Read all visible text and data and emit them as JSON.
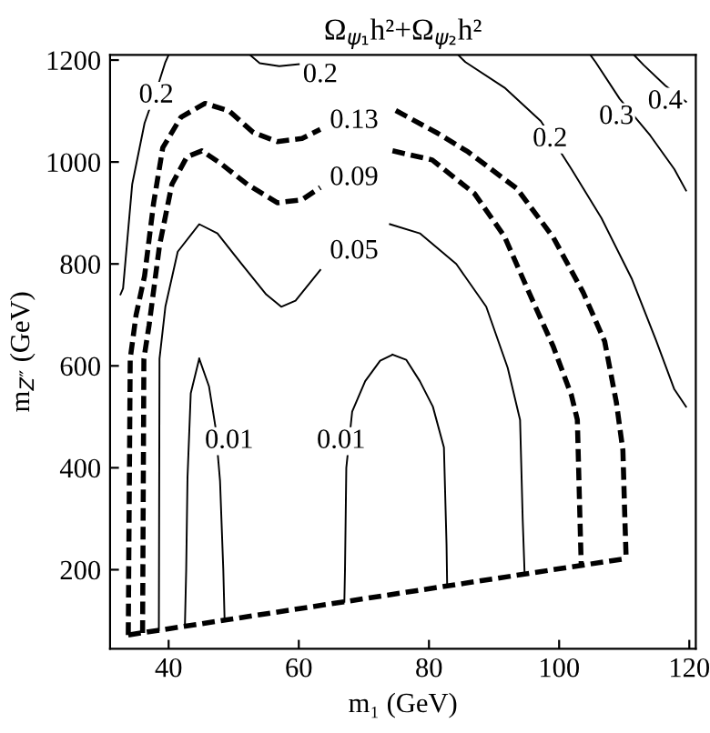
{
  "chart_data": {
    "type": "line",
    "title": "Ω$_{ψ₁}$h²+Ω$_{ψ₂}$h²",
    "xlabel": "m₁ (GeV)",
    "ylabel": "m$_{Z″}$ (GeV)",
    "xlim": [
      31,
      121
    ],
    "ylim": [
      45,
      1210
    ],
    "xticks": [
      40,
      60,
      80,
      100,
      120
    ],
    "yticks": [
      200,
      400,
      600,
      800,
      1000,
      1200
    ],
    "grid": false,
    "legend": false,
    "series": [
      {
        "color": "#000000",
        "line_style": "dashed",
        "x": [
          33.8,
          34.1,
          35.0,
          36.3,
          37.7,
          39.1,
          41.9,
          45.6,
          49.3,
          53.0,
          56.7,
          60.5,
          63.3
        ],
        "values": [
          72,
          614,
          700,
          776,
          920,
          1028,
          1088,
          1115,
          1100,
          1058,
          1040,
          1046,
          1064
        ]
      },
      {
        "color": "#000000",
        "line_style": "dashed",
        "x": [
          74.9,
          81.4,
          86.0,
          93.5,
          99.1,
          103.7,
          107.0,
          108.8,
          109.8,
          110.1,
          110.3
        ],
        "values": [
          1101,
          1056,
          1020,
          948,
          852,
          744,
          648,
          528,
          434,
          300,
          222
        ]
      },
      {
        "color": "#000000",
        "line_style": "dashed",
        "x": [
          36.0,
          36.2,
          37.0,
          38.6,
          40.5,
          42.8,
          45.1,
          47.9,
          52.1,
          56.7,
          60.5,
          63.3
        ],
        "values": [
          76,
          614,
          680,
          836,
          956,
          1010,
          1022,
          998,
          956,
          920,
          926,
          950
        ]
      },
      {
        "color": "#000000",
        "line_style": "dashed",
        "x": [
          74.4,
          80.5,
          87.0,
          91.6,
          95.3,
          99.1,
          101.9,
          102.8,
          103.2,
          103.4
        ],
        "values": [
          1022,
          1004,
          938,
          854,
          746,
          638,
          542,
          494,
          300,
          208
        ]
      },
      {
        "color": "#000000",
        "line_style": "dashed",
        "x": [
          33.8,
          110.3
        ],
        "values": [
          72,
          222
        ]
      },
      {
        "color": "#000000",
        "line_style": "solid",
        "x": [
          38.5,
          38.6,
          39.5,
          41.4,
          44.7,
          47.5,
          51.2,
          55.0,
          57.3,
          59.5,
          63.3
        ],
        "values": [
          81,
          614,
          716,
          824,
          878,
          860,
          800,
          740,
          716,
          728,
          788
        ]
      },
      {
        "color": "#000000",
        "line_style": "solid",
        "x": [
          74.0,
          78.6,
          84.2,
          88.8,
          92.1,
          94.0,
          94.4,
          94.7
        ],
        "values": [
          878,
          860,
          800,
          716,
          596,
          494,
          300,
          191
        ]
      },
      {
        "color": "#000000",
        "line_style": "solid",
        "x": [
          42.5,
          42.7,
          42.9,
          43.4,
          44.7
        ],
        "values": [
          89,
          200,
          380,
          546,
          614
        ]
      },
      {
        "color": "#000000",
        "line_style": "solid",
        "x": [
          44.7,
          46.2,
          47.2,
          47.9,
          48.4,
          48.6
        ],
        "values": [
          614,
          560,
          480,
          374,
          200,
          101
        ]
      },
      {
        "color": "#000000",
        "line_style": "solid",
        "x": [
          67.0,
          67.1,
          67.3,
          68.2,
          70.2,
          72.5,
          74.4
        ],
        "values": [
          137,
          200,
          400,
          510,
          570,
          610,
          622
        ]
      },
      {
        "color": "#000000",
        "line_style": "solid",
        "x": [
          74.4,
          76.5,
          78.6,
          80.6,
          82.3,
          82.7,
          82.8
        ],
        "values": [
          622,
          612,
          570,
          520,
          440,
          250,
          167
        ]
      },
      {
        "color": "#000000",
        "line_style": "solid",
        "x": [
          32.6,
          33.0,
          34.4,
          36.3,
          38.6,
          39.5,
          40.0
        ],
        "values": [
          740,
          752,
          956,
          1076,
          1160,
          1196,
          1210
        ]
      },
      {
        "color": "#000000",
        "line_style": "solid",
        "x": [
          52.5,
          54.0,
          57.0,
          60.0
        ],
        "values": [
          1210,
          1194,
          1188,
          1192
        ]
      },
      {
        "color": "#000000",
        "line_style": "solid",
        "x": [
          84.5,
          85.6,
          91.6,
          97.2,
          101.9,
          106.5,
          111.2,
          114.9,
          117.7,
          119.5
        ],
        "values": [
          1210,
          1196,
          1146,
          1080,
          986,
          890,
          770,
          650,
          554,
          520
        ]
      },
      {
        "color": "#000000",
        "line_style": "solid",
        "x": [
          104.8,
          105.6,
          109.3,
          114.0,
          117.7,
          119.5
        ],
        "values": [
          1210,
          1196,
          1124,
          1052,
          986,
          944
        ]
      },
      {
        "color": "#000000",
        "line_style": "solid",
        "x": [
          111.5,
          113.0,
          116.3,
          119.5
        ],
        "values": [
          1210,
          1190,
          1150,
          1118
        ]
      }
    ],
    "annotations": [
      {
        "text": "0.2",
        "x": 38.1,
        "y": 1130
      },
      {
        "text": "0.2",
        "x": 63.3,
        "y": 1170
      },
      {
        "text": "0.13",
        "x": 68.5,
        "y": 1080
      },
      {
        "text": "0.09",
        "x": 68.5,
        "y": 968
      },
      {
        "text": "0.05",
        "x": 68.5,
        "y": 824
      },
      {
        "text": "0.2",
        "x": 98.6,
        "y": 1044
      },
      {
        "text": "0.3",
        "x": 108.8,
        "y": 1088
      },
      {
        "text": "0.4",
        "x": 116.3,
        "y": 1118
      },
      {
        "text": "0.01",
        "x": 49.3,
        "y": 452
      },
      {
        "text": "0.01",
        "x": 66.5,
        "y": 452
      }
    ]
  }
}
